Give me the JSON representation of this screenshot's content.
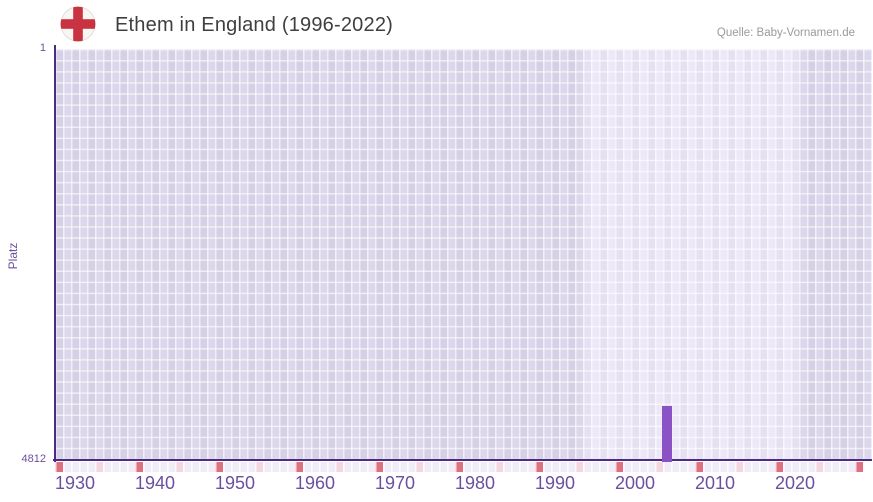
{
  "header": {
    "title": "Ethem in England (1996-2022)",
    "source": "Quelle: Baby-Vornamen.de"
  },
  "chart_data": {
    "type": "bar",
    "title": "Ethem in England (1996-2022)",
    "source": "Quelle: Baby-Vornamen.de",
    "xlabel": "",
    "ylabel": "Platz",
    "y_axis": {
      "top_value": 1,
      "bottom_value": 4812,
      "inverted": true,
      "tick_labels": [
        "1",
        "4812"
      ]
    },
    "x_axis": {
      "start_year": 1930,
      "end_year": 2030,
      "tick_years": [
        1930,
        1940,
        1950,
        1960,
        1970,
        1980,
        1990,
        2000,
        2010,
        2020
      ],
      "decade_marker_years": [
        1930,
        1940,
        1950,
        1960,
        1970,
        1980,
        1990,
        2000,
        2010,
        2020,
        2030
      ],
      "half_decade_marker_years": [
        1935,
        1945,
        1955,
        1965,
        1975,
        1985,
        1995,
        2005,
        2015,
        2025
      ]
    },
    "highlight_range": {
      "from": 1996,
      "to": 2022
    },
    "series": [
      {
        "name": "Platz",
        "points": [
          {
            "year": 2006,
            "rank": 4180
          }
        ]
      }
    ],
    "legend": "none",
    "grid": true,
    "colors": {
      "bar": "#8b52c6",
      "axis_line": "#4e2a84",
      "grid_cell": "#dcd7ea",
      "grid_cell_highlight": "#ece8f7",
      "decade_marker": "#e0707f",
      "half_decade_marker": "#f4d5e1",
      "strip_background": "#f0edf9",
      "tick_label": "#6b4fa0",
      "title_text": "#3f3f3f",
      "source_text": "#9b9b9b",
      "flag_red": "#c93241"
    },
    "icons": [
      "england-flag-icon"
    ]
  }
}
